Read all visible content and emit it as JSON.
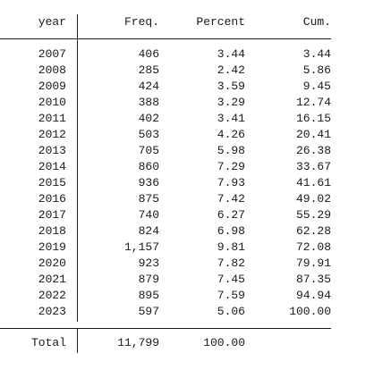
{
  "header": {
    "col_year": "year",
    "col_freq": "Freq.",
    "col_percent": "Percent",
    "col_cum": "Cum."
  },
  "rows": [
    {
      "year": "2007",
      "freq": "406",
      "percent": "3.44",
      "cum": "3.44"
    },
    {
      "year": "2008",
      "freq": "285",
      "percent": "2.42",
      "cum": "5.86"
    },
    {
      "year": "2009",
      "freq": "424",
      "percent": "3.59",
      "cum": "9.45"
    },
    {
      "year": "2010",
      "freq": "388",
      "percent": "3.29",
      "cum": "12.74"
    },
    {
      "year": "2011",
      "freq": "402",
      "percent": "3.41",
      "cum": "16.15"
    },
    {
      "year": "2012",
      "freq": "503",
      "percent": "4.26",
      "cum": "20.41"
    },
    {
      "year": "2013",
      "freq": "705",
      "percent": "5.98",
      "cum": "26.38"
    },
    {
      "year": "2014",
      "freq": "860",
      "percent": "7.29",
      "cum": "33.67"
    },
    {
      "year": "2015",
      "freq": "936",
      "percent": "7.93",
      "cum": "41.61"
    },
    {
      "year": "2016",
      "freq": "875",
      "percent": "7.42",
      "cum": "49.02"
    },
    {
      "year": "2017",
      "freq": "740",
      "percent": "6.27",
      "cum": "55.29"
    },
    {
      "year": "2018",
      "freq": "824",
      "percent": "6.98",
      "cum": "62.28"
    },
    {
      "year": "2019",
      "freq": "1,157",
      "percent": "9.81",
      "cum": "72.08"
    },
    {
      "year": "2020",
      "freq": "923",
      "percent": "7.82",
      "cum": "79.91"
    },
    {
      "year": "2021",
      "freq": "879",
      "percent": "7.45",
      "cum": "87.35"
    },
    {
      "year": "2022",
      "freq": "895",
      "percent": "7.59",
      "cum": "94.94"
    },
    {
      "year": "2023",
      "freq": "597",
      "percent": "5.06",
      "cum": "100.00"
    }
  ],
  "total": {
    "label": "Total",
    "freq": "11,799",
    "percent": "100.00"
  }
}
